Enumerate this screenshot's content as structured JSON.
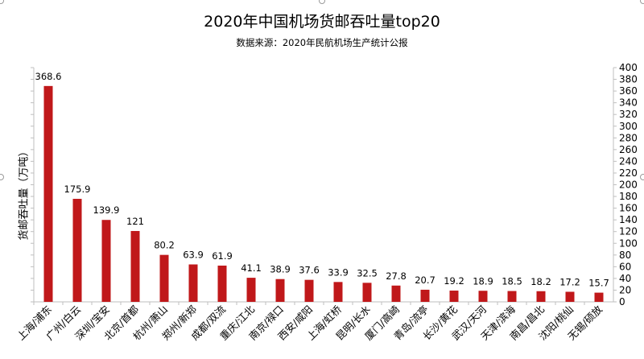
{
  "chart_data": {
    "type": "bar",
    "title": "2020年中国机场货邮吞吐量top20",
    "subtitle": "数据来源：2020年民航机场生产统计公报",
    "xlabel": "",
    "ylabel": "货邮吞吐量（万吨）",
    "ylim": [
      0,
      400
    ],
    "ytick_step": 20,
    "y_axis_side": "right",
    "grid": false,
    "legend": "none",
    "bar_color": "#C0181A",
    "categories": [
      "上海/浦东",
      "广州/白云",
      "深圳/宝安",
      "北京/首都",
      "杭州/萧山",
      "郑州/新郑",
      "成都/双流",
      "重庆/江北",
      "南京/禄口",
      "西安/咸阳",
      "上海/虹桥",
      "昆明/长水",
      "厦门/高崎",
      "青岛/流亭",
      "长沙/黄花",
      "武汉/天河",
      "天津/滨海",
      "南昌/昌北",
      "沈阳/桃仙",
      "无锡/硕放"
    ],
    "values": [
      368.6,
      175.9,
      139.9,
      121,
      80.2,
      63.9,
      61.9,
      41.1,
      38.9,
      37.6,
      33.9,
      32.5,
      27.8,
      20.7,
      19.2,
      18.9,
      18.5,
      18.2,
      17.2,
      15.7
    ]
  }
}
